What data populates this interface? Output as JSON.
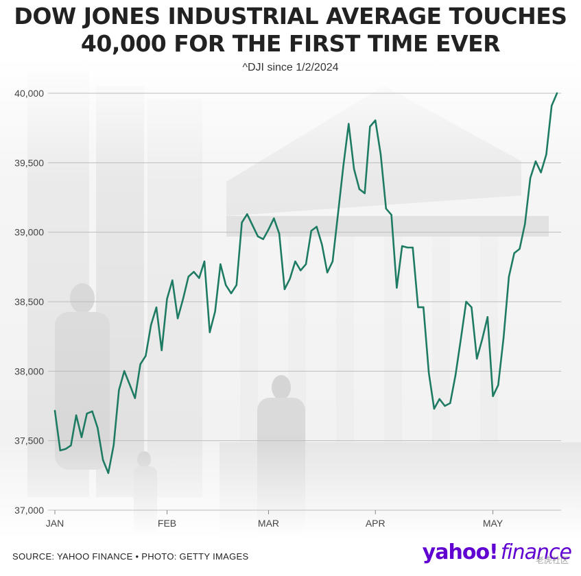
{
  "chart_data": {
    "type": "line",
    "title": "DOW JONES INDUSTRIAL AVERAGE TOUCHES 40,000 FOR THE FIRST TIME EVER",
    "subtitle": "^DJI since 1/2/2024",
    "xlabel": "",
    "ylabel": "",
    "ylim": [
      37000,
      40000
    ],
    "y_ticks": [
      37000,
      37500,
      38000,
      38500,
      39000,
      39500,
      40000
    ],
    "y_tick_labels": [
      "37,000",
      "37,500",
      "38,000",
      "38,500",
      "39,000",
      "39,500",
      "40,000"
    ],
    "x_tick_labels": [
      {
        "label": "JAN",
        "index": 0
      },
      {
        "label": "FEB",
        "index": 21
      },
      {
        "label": "MAR",
        "index": 40
      },
      {
        "label": "APR",
        "index": 60
      },
      {
        "label": "MAY",
        "index": 82
      }
    ],
    "line_color": "#1e7b63",
    "grid": true,
    "series": [
      {
        "name": "^DJI",
        "values": [
          37715,
          37430,
          37440,
          37466,
          37683,
          37525,
          37695,
          37711,
          37592,
          37361,
          37267,
          37468,
          37864,
          38001,
          37905,
          37806,
          38050,
          38110,
          38334,
          38459,
          38150,
          38520,
          38654,
          38380,
          38520,
          38680,
          38715,
          38670,
          38790,
          38280,
          38430,
          38770,
          38620,
          38560,
          38620,
          39070,
          39130,
          39050,
          38970,
          38950,
          39020,
          39100,
          38990,
          38590,
          38665,
          38790,
          38725,
          38770,
          39010,
          39040,
          38910,
          38710,
          38790,
          39130,
          39475,
          39780,
          39455,
          39310,
          39280,
          39760,
          39805,
          39560,
          39170,
          39125,
          38600,
          38900,
          38890,
          38890,
          38460,
          38460,
          37990,
          37730,
          37800,
          37750,
          37770,
          37970,
          38230,
          38500,
          38460,
          38090,
          38230,
          38390,
          37820,
          37900,
          38240,
          38680,
          38850,
          38880,
          39060,
          39390,
          39510,
          39430,
          39560,
          39910,
          40000
        ]
      }
    ]
  },
  "footer": {
    "source": "SOURCE: YAHOO FINANCE • PHOTO: GETTY IMAGES",
    "brand_main": "yahoo!",
    "brand_sub": "finance",
    "watermark": "老虎社区"
  }
}
